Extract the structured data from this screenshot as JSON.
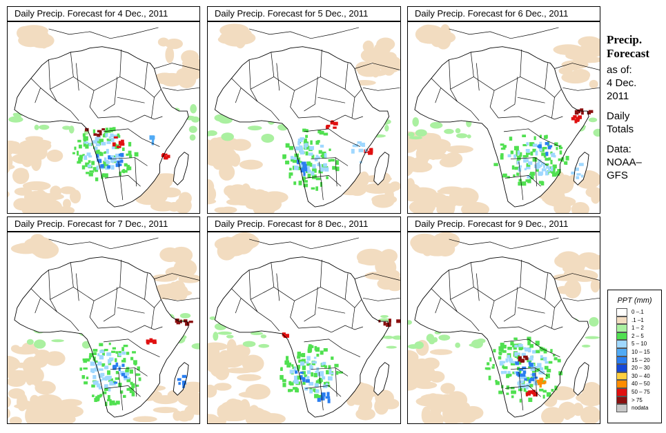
{
  "panels": [
    {
      "title": "Daily Precip. Forecast for  4 Dec., 2011"
    },
    {
      "title": "Daily Precip. Forecast for  5 Dec., 2011"
    },
    {
      "title": "Daily Precip. Forecast for  6 Dec., 2011"
    },
    {
      "title": "Daily Precip. Forecast for  7 Dec., 2011"
    },
    {
      "title": "Daily Precip. Forecast for  8 Dec., 2011"
    },
    {
      "title": "Daily Precip. Forecast for  9 Dec., 2011"
    }
  ],
  "side": {
    "line1": "Precip.",
    "line2": "Forecast",
    "line3": "as of:",
    "line4": "4 Dec.",
    "line5": "2011",
    "line6": "Daily",
    "line7": "Totals",
    "line8": "Data:",
    "line9": "NOAA–",
    "line10": "GFS"
  },
  "legend": {
    "title": "PPT (mm)",
    "items": [
      {
        "label": "0 –.1",
        "color": "#ffffff"
      },
      {
        "label": ".1 –1",
        "color": "#f2dcc0"
      },
      {
        "label": "1 – 2",
        "color": "#aaf0a0"
      },
      {
        "label": "2 – 5",
        "color": "#50e050"
      },
      {
        "label": "5 – 10",
        "color": "#a0d8ff"
      },
      {
        "label": "10 – 15",
        "color": "#50aaf5"
      },
      {
        "label": "15 – 20",
        "color": "#2a7ef0"
      },
      {
        "label": "20 – 30",
        "color": "#1548d8"
      },
      {
        "label": "30 – 40",
        "color": "#ffd040"
      },
      {
        "label": "40 – 50",
        "color": "#ff8c00"
      },
      {
        "label": "50 – 75",
        "color": "#e01010"
      },
      {
        "label": "> 75",
        "color": "#8a1010"
      },
      {
        "label": "nodata",
        "color": "#c8c8c8"
      }
    ]
  }
}
